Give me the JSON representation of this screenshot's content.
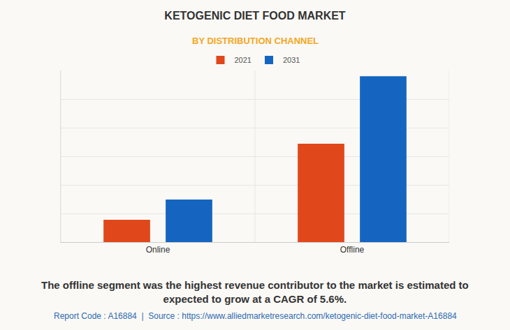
{
  "chart_data": {
    "type": "bar",
    "title": "KETOGENIC DIET FOOD MARKET",
    "subtitle": "BY DISTRIBUTION CHANNEL",
    "categories": [
      "Online",
      "Offline"
    ],
    "series": [
      {
        "name": "2021",
        "color": "#e0481b",
        "values": [
          0.78,
          3.44
        ]
      },
      {
        "name": "2031",
        "color": "#1565c0",
        "values": [
          1.49,
          5.8
        ]
      }
    ],
    "ylim": [
      0,
      6
    ],
    "yticks": [
      0,
      1,
      2,
      3,
      4,
      5,
      6
    ],
    "grid": true,
    "tick_labels": "x",
    "legend": "top",
    "caption": [
      "The offline segment was the highest revenue contributor to the market is estimated to",
      "expected to grow at a CAGR of 5.6%."
    ],
    "source": "Report Code : A16884  |  Source : https://www.alliedmarketresearch.com/ketogenic-diet-food-market-A16884"
  }
}
